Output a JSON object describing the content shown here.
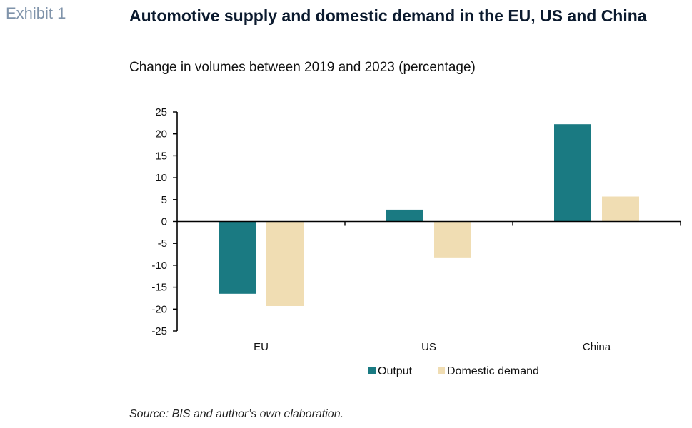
{
  "exhibit_label": "Exhibit 1",
  "colors": {
    "output": "#1a7a82",
    "domestic_demand": "#f0ddb3",
    "axis": "#000000"
  },
  "chart_data": {
    "type": "bar",
    "title": "Automotive supply and domestic demand in the EU, US and China",
    "subtitle": "Change in volumes between 2019 and 2023 (percentage)",
    "categories": [
      "EU",
      "US",
      "China"
    ],
    "series": [
      {
        "name": "Output",
        "values": [
          -16.5,
          2.7,
          22.2
        ]
      },
      {
        "name": "Domestic demand",
        "values": [
          -19.3,
          -8.2,
          5.7
        ]
      }
    ],
    "ylim": [
      -25,
      25
    ],
    "yticks": [
      25,
      20,
      15,
      10,
      5,
      0,
      -5,
      -10,
      -15,
      -20,
      -25
    ],
    "grid": false,
    "legend_position": "bottom"
  },
  "source": "Source: BIS and author’s own elaboration."
}
